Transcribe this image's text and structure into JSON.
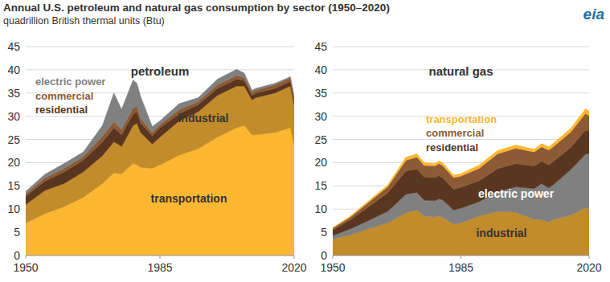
{
  "title": "Annual U.S. petroleum and natural gas consumption by sector (1950–2020)",
  "subtitle": "quadrillion British thermal units (Btu)",
  "logo": "eia",
  "chart_data": [
    {
      "type": "area",
      "title": "petroleum",
      "stacked": true,
      "grid": true,
      "x": [
        1950,
        1955,
        1960,
        1965,
        1970,
        1973,
        1975,
        1978,
        1979,
        1980,
        1983,
        1985,
        1990,
        1995,
        2000,
        2005,
        2007,
        2009,
        2010,
        2015,
        2019,
        2020
      ],
      "xlim": [
        1950,
        2020
      ],
      "xticks": [
        1950,
        1985,
        2020
      ],
      "ylim": [
        0,
        45
      ],
      "yticks": [
        0,
        5,
        10,
        15,
        20,
        25,
        30,
        35,
        40,
        45
      ],
      "series": [
        {
          "name": "transportation",
          "color": "#fcb732",
          "values": [
            7,
            9,
            10.5,
            12.5,
            15.5,
            17.8,
            17.6,
            19.8,
            19.5,
            19,
            18.8,
            19.5,
            21.6,
            23,
            25.5,
            27.5,
            28,
            26,
            26,
            26.5,
            27.5,
            24
          ]
        },
        {
          "name": "industrial",
          "color": "#c28c2c",
          "values": [
            4,
            5,
            5,
            5.5,
            6,
            6.7,
            5.9,
            8.2,
            9,
            7.5,
            5.2,
            6,
            7.4,
            8,
            9,
            9,
            8.5,
            7.5,
            8,
            8.5,
            9,
            8.5
          ]
        },
        {
          "name": "residential",
          "color": "#5a3620",
          "values": [
            1.7,
            2,
            2.5,
            2.5,
            3,
            3,
            2.5,
            2.5,
            2.5,
            2,
            1.8,
            2,
            1.5,
            1.5,
            1.5,
            1.5,
            1.2,
            1,
            1,
            1,
            1,
            0.8
          ]
        },
        {
          "name": "commercial",
          "color": "#8c5a34",
          "values": [
            0.6,
            0.7,
            0.8,
            0.8,
            1.2,
            1.3,
            1.2,
            1.3,
            1.2,
            1,
            0.7,
            0.7,
            0.9,
            0.7,
            0.8,
            0.8,
            0.6,
            0.7,
            0.6,
            0.8,
            0.8,
            0.7
          ]
        },
        {
          "name": "electric power",
          "color": "#808080",
          "values": [
            0.5,
            0.8,
            1.0,
            1.0,
            2.3,
            6.2,
            4.3,
            6.0,
            4.9,
            4.7,
            1.3,
            0.8,
            1.3,
            0.8,
            1.2,
            1.3,
            1.0,
            0.4,
            0.4,
            0.3,
            0.2,
            0.2
          ]
        }
      ]
    },
    {
      "type": "area",
      "title": "natural gas",
      "stacked": true,
      "grid": true,
      "x": [
        1950,
        1955,
        1960,
        1965,
        1970,
        1973,
        1975,
        1978,
        1979,
        1980,
        1983,
        1985,
        1990,
        1995,
        2000,
        2005,
        2007,
        2009,
        2010,
        2015,
        2019,
        2020
      ],
      "xlim": [
        1950,
        2020
      ],
      "xticks": [
        1950,
        1985,
        2020
      ],
      "ylim": [
        0,
        45
      ],
      "yticks": [
        0,
        5,
        10,
        15,
        20,
        25,
        30,
        35,
        40,
        45
      ],
      "series": [
        {
          "name": "industrial",
          "color": "#c28c2c",
          "values": [
            3.5,
            4.5,
            5.8,
            7,
            9.2,
            9.8,
            8.5,
            8.3,
            8.5,
            8.2,
            6.8,
            7.0,
            8.5,
            9.5,
            9.3,
            7.8,
            7.7,
            7.2,
            7.7,
            8.7,
            10.3,
            10.0
          ]
        },
        {
          "name": "electric power",
          "color": "#808080",
          "values": [
            0.8,
            1.3,
            1.8,
            2.5,
            4,
            3.8,
            3.4,
            3.5,
            3.7,
            3.8,
            3,
            3.2,
            3.1,
            4.2,
            5.5,
            6.6,
            7.8,
            7.4,
            7.4,
            9.8,
            11.5,
            12
          ]
        },
        {
          "name": "residential",
          "color": "#5a3620",
          "values": [
            1.2,
            2,
            3,
            4,
            5,
            5,
            5,
            5,
            5,
            4.8,
            4.5,
            4.5,
            4.5,
            5,
            5,
            4.9,
            4.8,
            4.9,
            5,
            4.8,
            5.2,
            4.8
          ]
        },
        {
          "name": "commercial",
          "color": "#8c5a34",
          "values": [
            0.4,
            0.6,
            1,
            1.3,
            2.3,
            2.6,
            2.5,
            2.5,
            2.6,
            2.6,
            2.5,
            2.4,
            2.7,
            3.2,
            3.3,
            3.0,
            3.1,
            3.2,
            3.2,
            3.3,
            3.6,
            3.3
          ]
        },
        {
          "name": "transportation",
          "color": "#fcb732",
          "values": [
            0.1,
            0.2,
            0.3,
            0.4,
            0.7,
            0.7,
            0.6,
            0.5,
            0.6,
            0.6,
            0.5,
            0.5,
            0.7,
            0.7,
            0.7,
            0.6,
            0.7,
            0.7,
            0.7,
            0.8,
            1.0,
            1.0
          ]
        }
      ]
    }
  ]
}
